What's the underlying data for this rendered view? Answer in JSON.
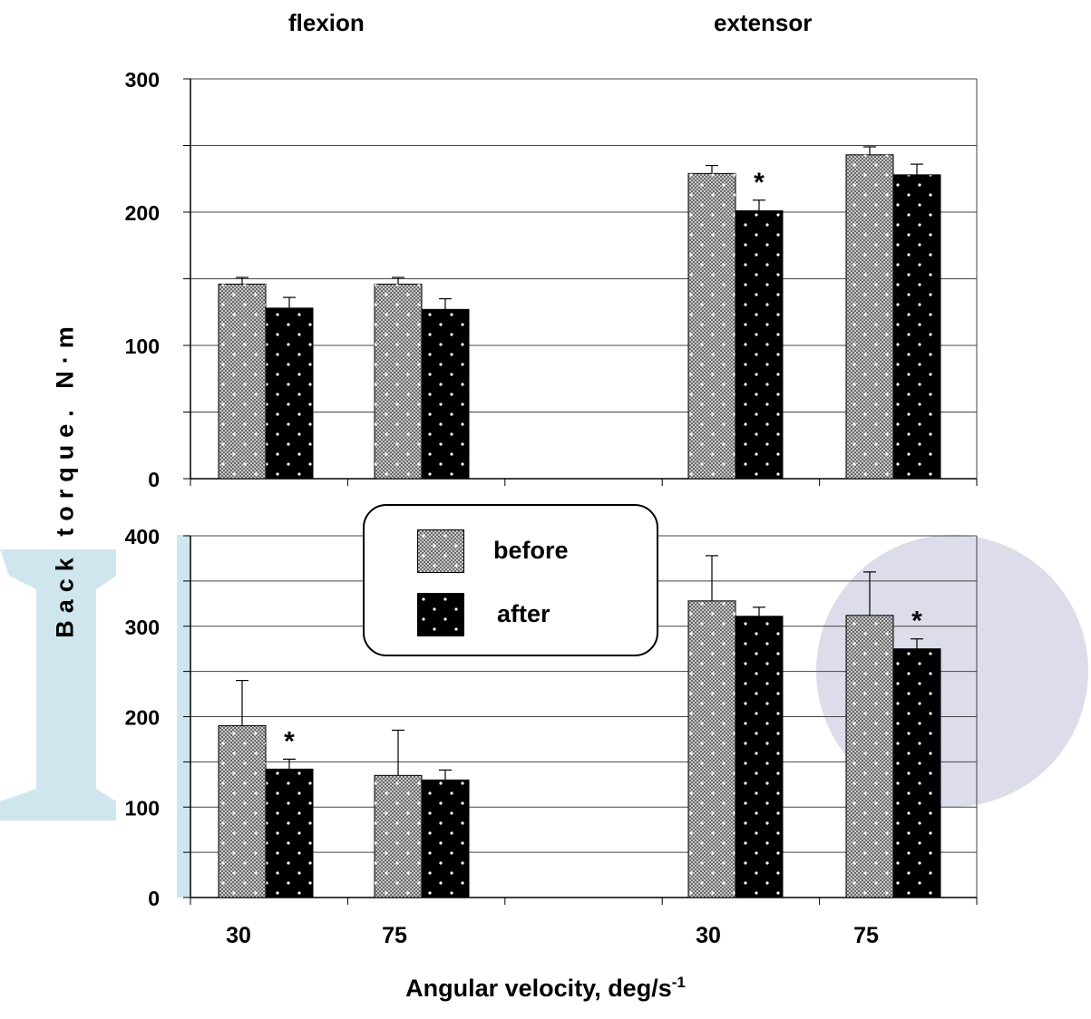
{
  "chart_data": [
    {
      "type": "bar",
      "panel": "top",
      "categories": [
        "30",
        "75",
        "",
        "30",
        "75"
      ],
      "ylim": [
        0,
        300
      ],
      "yticks": [
        "0",
        "100",
        "200",
        "300"
      ],
      "minor_step": 50,
      "grid": true,
      "series": [
        {
          "name": "before",
          "values": [
            146,
            146,
            null,
            229,
            243
          ],
          "errors": [
            5,
            5,
            null,
            6,
            6
          ]
        },
        {
          "name": "after",
          "values": [
            128,
            127,
            null,
            201,
            228
          ],
          "errors": [
            8,
            8,
            null,
            8,
            8
          ]
        }
      ],
      "significance": [
        {
          "category_index": 3,
          "series": "after",
          "label": "*"
        }
      ]
    },
    {
      "type": "bar",
      "panel": "bottom",
      "categories": [
        "30",
        "75",
        "",
        "30",
        "75"
      ],
      "ylim": [
        0,
        400
      ],
      "yticks": [
        "0",
        "100",
        "200",
        "300",
        "400"
      ],
      "minor_step": 50,
      "grid": true,
      "series": [
        {
          "name": "before",
          "values": [
            190,
            135,
            null,
            328,
            312
          ],
          "errors": [
            50,
            50,
            null,
            50,
            48
          ]
        },
        {
          "name": "after",
          "values": [
            142,
            130,
            null,
            311,
            275
          ],
          "errors": [
            11,
            11,
            null,
            10,
            11
          ]
        }
      ],
      "significance": [
        {
          "category_index": 0,
          "series": "after",
          "label": "*"
        },
        {
          "category_index": 4,
          "series": "after",
          "label": "*"
        }
      ]
    }
  ],
  "headers": {
    "left": "flexion",
    "right": "extensor"
  },
  "axis": {
    "ylabel": "Back torque. N·m",
    "xlabel_main": "Angular velocity, deg/s",
    "xlabel_sup": "-1"
  },
  "xtick_labels": [
    "30",
    "75",
    "",
    "30",
    "75"
  ],
  "legend": {
    "before": "before",
    "after": "after"
  },
  "colors": {
    "before_fill": "#9a9a9a",
    "after_fill": "#000000",
    "grid": "#444444",
    "watermark_left": "#cfe6ef",
    "watermark_right": "#dddcea"
  }
}
